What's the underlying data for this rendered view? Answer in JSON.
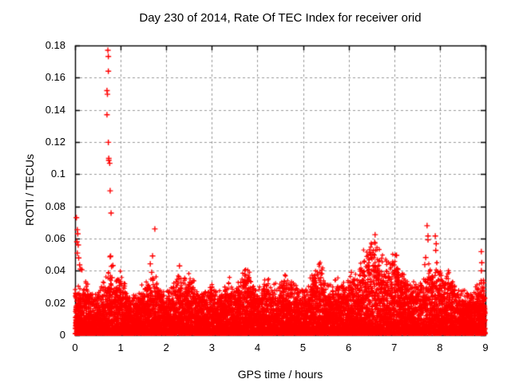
{
  "chart_data": {
    "type": "scatter",
    "title": "Day 230 of 2014, Rate Of TEC Index for receiver orid",
    "xlabel": "GPS time / hours",
    "ylabel": "ROTI / TECUs",
    "xlim": [
      0,
      9
    ],
    "ylim": [
      0,
      0.18
    ],
    "xticks": {
      "values": [
        0,
        1,
        2,
        3,
        4,
        5,
        6,
        7,
        8,
        9
      ],
      "labels": [
        "0",
        "1",
        "2",
        "3",
        "4",
        "5",
        "6",
        "7",
        "8",
        "9"
      ]
    },
    "yticks": {
      "values": [
        0,
        0.02,
        0.04,
        0.06,
        0.08,
        0.1,
        0.12,
        0.14,
        0.16,
        0.18
      ],
      "labels": [
        "0",
        "0.02",
        "0.04",
        "0.06",
        "0.08",
        "0.1",
        "0.12",
        "0.14",
        "0.16",
        "0.18"
      ]
    },
    "grid": true,
    "grid_style": "dashed",
    "grid_color": "#999999",
    "axis_color": "#000000",
    "background_color": "#ffffff",
    "marker": "+",
    "marker_color": "#ff0000",
    "legend_position": "none",
    "cloud": {
      "note": "dense background scatter of ROTI values; per-bin estimated maximum of the dense cloud",
      "step_hours": 0.125,
      "floor": 0.001,
      "approx_points": 12000,
      "seed": 7,
      "max": [
        0.028,
        0.024,
        0.03,
        0.022,
        0.026,
        0.03,
        0.036,
        0.03,
        0.033,
        0.026,
        0.02,
        0.024,
        0.028,
        0.03,
        0.034,
        0.026,
        0.022,
        0.028,
        0.033,
        0.03,
        0.034,
        0.028,
        0.022,
        0.024,
        0.028,
        0.022,
        0.026,
        0.03,
        0.026,
        0.03,
        0.038,
        0.03,
        0.024,
        0.028,
        0.032,
        0.026,
        0.03,
        0.033,
        0.03,
        0.026,
        0.024,
        0.03,
        0.034,
        0.04,
        0.03,
        0.026,
        0.03,
        0.028,
        0.034,
        0.03,
        0.04,
        0.048,
        0.055,
        0.05,
        0.045,
        0.042,
        0.048,
        0.038,
        0.034,
        0.03,
        0.028,
        0.034,
        0.038,
        0.042,
        0.036,
        0.034,
        0.036,
        0.028,
        0.024,
        0.022,
        0.026,
        0.028,
        0.03
      ]
    },
    "spikes": [
      [
        0.03,
        0.073
      ],
      [
        0.05,
        0.0655
      ],
      [
        0.06,
        0.063
      ],
      [
        0.04,
        0.058
      ],
      [
        0.07,
        0.056
      ],
      [
        0.05,
        0.051
      ],
      [
        0.08,
        0.048
      ],
      [
        0.1,
        0.0436
      ],
      [
        0.12,
        0.041
      ],
      [
        0.15,
        0.0406
      ],
      [
        0.72,
        0.177
      ],
      [
        0.73,
        0.1732
      ],
      [
        0.73,
        0.164
      ],
      [
        0.7,
        0.152
      ],
      [
        0.71,
        0.1497
      ],
      [
        0.7,
        0.137
      ],
      [
        0.73,
        0.1198
      ],
      [
        0.74,
        0.1098
      ],
      [
        0.74,
        0.1086
      ],
      [
        0.76,
        0.1068
      ],
      [
        0.77,
        0.0897
      ],
      [
        0.79,
        0.0759
      ],
      [
        0.78,
        0.0491
      ],
      [
        0.8,
        0.0427
      ],
      [
        0.81,
        0.0357
      ],
      [
        0.77,
        0.0487
      ],
      [
        0.83,
        0.0433
      ],
      [
        1.75,
        0.066
      ],
      [
        1.7,
        0.0492
      ],
      [
        1.65,
        0.0443
      ],
      [
        1.68,
        0.039
      ],
      [
        2.29,
        0.043
      ],
      [
        2.59,
        0.0339
      ],
      [
        5.41,
        0.0405
      ],
      [
        5.39,
        0.0357
      ],
      [
        6.06,
        0.039
      ],
      [
        6.58,
        0.0624
      ],
      [
        6.57,
        0.0576
      ],
      [
        7.05,
        0.0496
      ],
      [
        7.07,
        0.0413
      ],
      [
        7.72,
        0.068
      ],
      [
        7.74,
        0.0616
      ],
      [
        7.74,
        0.0592
      ],
      [
        7.9,
        0.0616
      ],
      [
        7.92,
        0.0568
      ],
      [
        7.91,
        0.0527
      ],
      [
        7.69,
        0.0482
      ],
      [
        7.67,
        0.0438
      ],
      [
        8.91,
        0.0519
      ],
      [
        8.92,
        0.045
      ],
      [
        8.91,
        0.04
      ]
    ]
  }
}
